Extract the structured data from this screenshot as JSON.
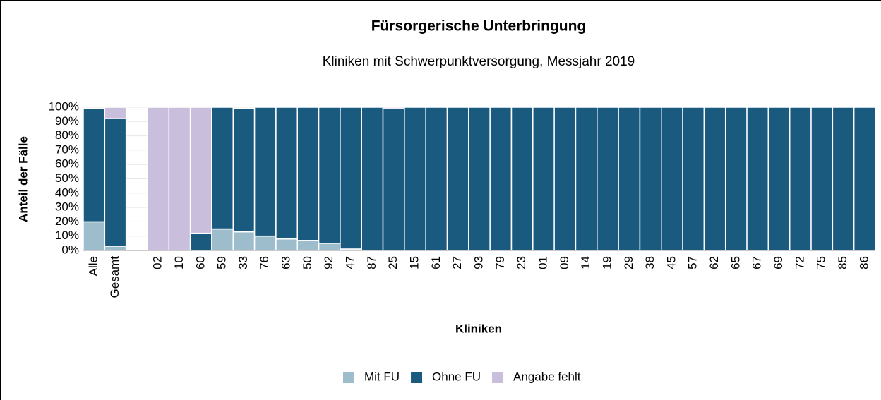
{
  "chart_data": {
    "type": "stacked_bar",
    "title": "Fürsorgerische Unterbringung",
    "subtitle": "Kliniken mit Schwerpunktversorgung, Messjahr 2019",
    "y_label": "Anteil der Fälle",
    "x_label": "Kliniken",
    "categories": [
      "Alle",
      "Gesamt",
      null,
      "02",
      "10",
      "60",
      "59",
      "33",
      "76",
      "63",
      "50",
      "92",
      "47",
      "87",
      "25",
      "15",
      "61",
      "27",
      "93",
      "79",
      "23",
      "01",
      "09",
      "14",
      "19",
      "29",
      "38",
      "45",
      "57",
      "62",
      "65",
      "67",
      "69",
      "72",
      "75",
      "85",
      "86"
    ],
    "series": [
      {
        "name": "Mit FU",
        "color": "#9dbccc",
        "values": [
          20,
          3,
          null,
          0,
          0,
          0,
          15,
          13,
          10,
          8,
          7,
          5,
          1,
          0,
          0,
          0,
          0,
          0,
          0,
          0,
          0,
          0,
          0,
          0,
          0,
          0,
          0,
          0,
          0,
          0,
          0,
          0,
          0,
          0,
          0,
          0,
          0
        ]
      },
      {
        "name": "Ohne FU",
        "color": "#1a5a7e",
        "values": [
          79,
          89,
          null,
          0,
          0,
          12,
          85,
          86,
          90,
          92,
          93,
          95,
          99,
          100,
          99,
          100,
          100,
          100,
          100,
          100,
          100,
          100,
          100,
          100,
          100,
          100,
          100,
          100,
          100,
          100,
          100,
          100,
          100,
          100,
          100,
          100,
          100
        ]
      },
      {
        "name": "Angabe fehlt",
        "color": "#c9bedc",
        "values": [
          0,
          8,
          null,
          100,
          100,
          88,
          0,
          0,
          0,
          0,
          0,
          0,
          0,
          0,
          1,
          0,
          0,
          0,
          0,
          0,
          0,
          0,
          0,
          0,
          0,
          0,
          0,
          0,
          0,
          0,
          0,
          0,
          0,
          0,
          0,
          0,
          0
        ]
      }
    ],
    "ylim": [
      0,
      100
    ],
    "yticks": [
      {
        "value": 0,
        "label": "0%"
      },
      {
        "value": 10,
        "label": "10%"
      },
      {
        "value": 20,
        "label": "20%"
      },
      {
        "value": 30,
        "label": "30%"
      },
      {
        "value": 40,
        "label": "40%"
      },
      {
        "value": 50,
        "label": "50%"
      },
      {
        "value": 60,
        "label": "60%"
      },
      {
        "value": 70,
        "label": "70%"
      },
      {
        "value": 80,
        "label": "80%"
      },
      {
        "value": 90,
        "label": "90%"
      },
      {
        "value": 100,
        "label": "100%"
      }
    ],
    "legend": "bottom"
  }
}
